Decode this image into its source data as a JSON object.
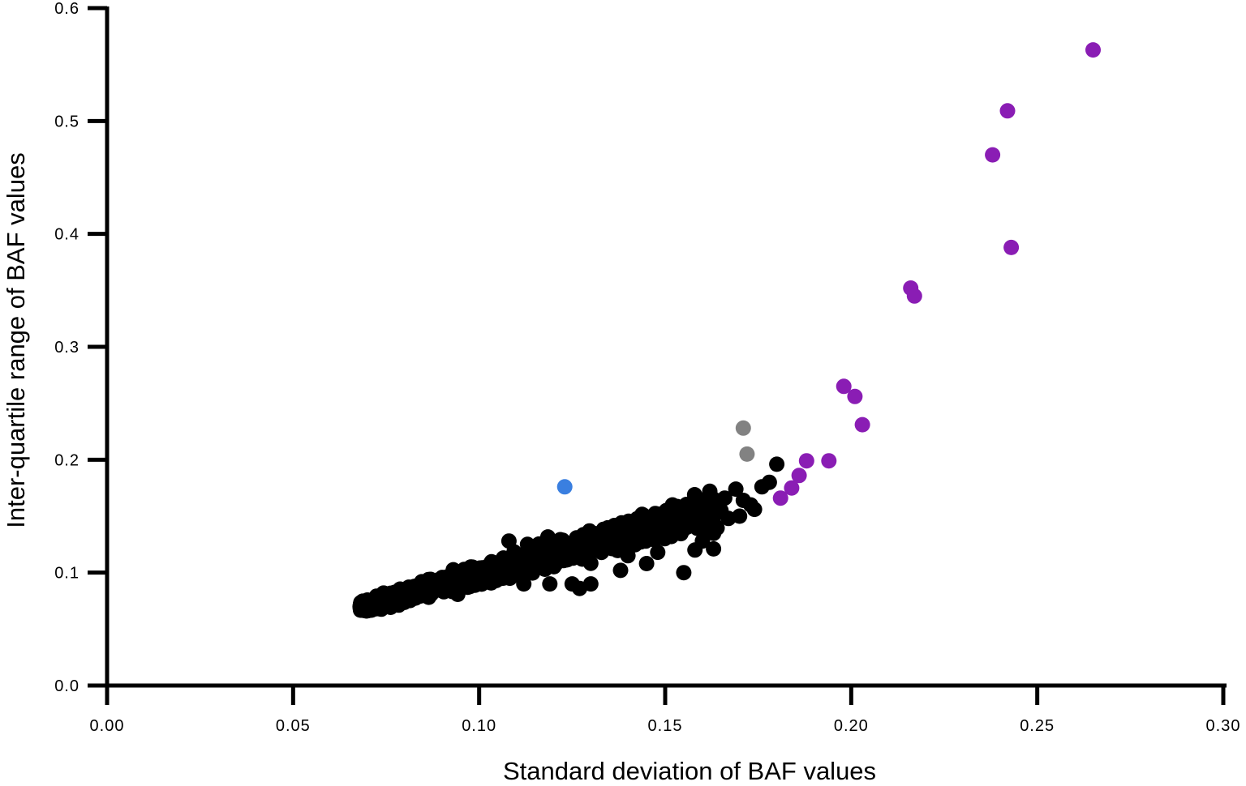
{
  "chart_data": {
    "type": "scatter",
    "title": "",
    "xlabel": "Standard deviation of BAF values",
    "ylabel": "Inter-quartile range of BAF values",
    "xlim": [
      0.0,
      0.3
    ],
    "ylim": [
      0.0,
      0.6
    ],
    "x_ticks": [
      "0.00",
      "0.05",
      "0.10",
      "0.15",
      "0.20",
      "0.25",
      "0.30"
    ],
    "y_ticks": [
      "0.0",
      "0.1",
      "0.2",
      "0.3",
      "0.4",
      "0.5",
      "0.6"
    ],
    "grid": false,
    "legend": "none",
    "groups": [
      {
        "color": "#000000",
        "cluster": {
          "count": 1500,
          "x_range": [
            0.068,
            0.164
          ],
          "trend": {
            "x0": 0.068,
            "y0": 0.069,
            "x1": 0.164,
            "y1": 0.155
          },
          "spread": 0.009
        },
        "points": [
          [
            0.162,
            0.172
          ],
          [
            0.166,
            0.166
          ],
          [
            0.169,
            0.174
          ],
          [
            0.171,
            0.164
          ],
          [
            0.173,
            0.16
          ],
          [
            0.17,
            0.15
          ],
          [
            0.174,
            0.156
          ],
          [
            0.176,
            0.176
          ],
          [
            0.178,
            0.18
          ],
          [
            0.18,
            0.196
          ],
          [
            0.16,
            0.128
          ],
          [
            0.158,
            0.12
          ],
          [
            0.163,
            0.121
          ],
          [
            0.167,
            0.148
          ],
          [
            0.165,
            0.155
          ],
          [
            0.16,
            0.14
          ],
          [
            0.152,
            0.135
          ],
          [
            0.148,
            0.118
          ],
          [
            0.145,
            0.108
          ],
          [
            0.138,
            0.102
          ],
          [
            0.14,
            0.115
          ],
          [
            0.155,
            0.1
          ],
          [
            0.13,
            0.09
          ],
          [
            0.127,
            0.086
          ],
          [
            0.125,
            0.09
          ],
          [
            0.119,
            0.09
          ],
          [
            0.112,
            0.09
          ],
          [
            0.108,
            0.128
          ],
          [
            0.113,
            0.125
          ],
          [
            0.122,
            0.127
          ],
          [
            0.132,
            0.132
          ],
          [
            0.137,
            0.135
          ],
          [
            0.143,
            0.145
          ],
          [
            0.15,
            0.15
          ],
          [
            0.155,
            0.155
          ]
        ]
      },
      {
        "color": "#3a7fe0",
        "points": [
          [
            0.123,
            0.176
          ]
        ]
      },
      {
        "color": "#828282",
        "points": [
          [
            0.171,
            0.228
          ],
          [
            0.172,
            0.205
          ]
        ]
      },
      {
        "color": "#8a1db4",
        "points": [
          [
            0.265,
            0.563
          ],
          [
            0.242,
            0.509
          ],
          [
            0.238,
            0.47
          ],
          [
            0.243,
            0.388
          ],
          [
            0.216,
            0.352
          ],
          [
            0.217,
            0.345
          ],
          [
            0.198,
            0.265
          ],
          [
            0.201,
            0.256
          ],
          [
            0.203,
            0.231
          ],
          [
            0.188,
            0.199
          ],
          [
            0.194,
            0.199
          ],
          [
            0.186,
            0.186
          ],
          [
            0.184,
            0.175
          ],
          [
            0.181,
            0.166
          ]
        ]
      }
    ]
  }
}
